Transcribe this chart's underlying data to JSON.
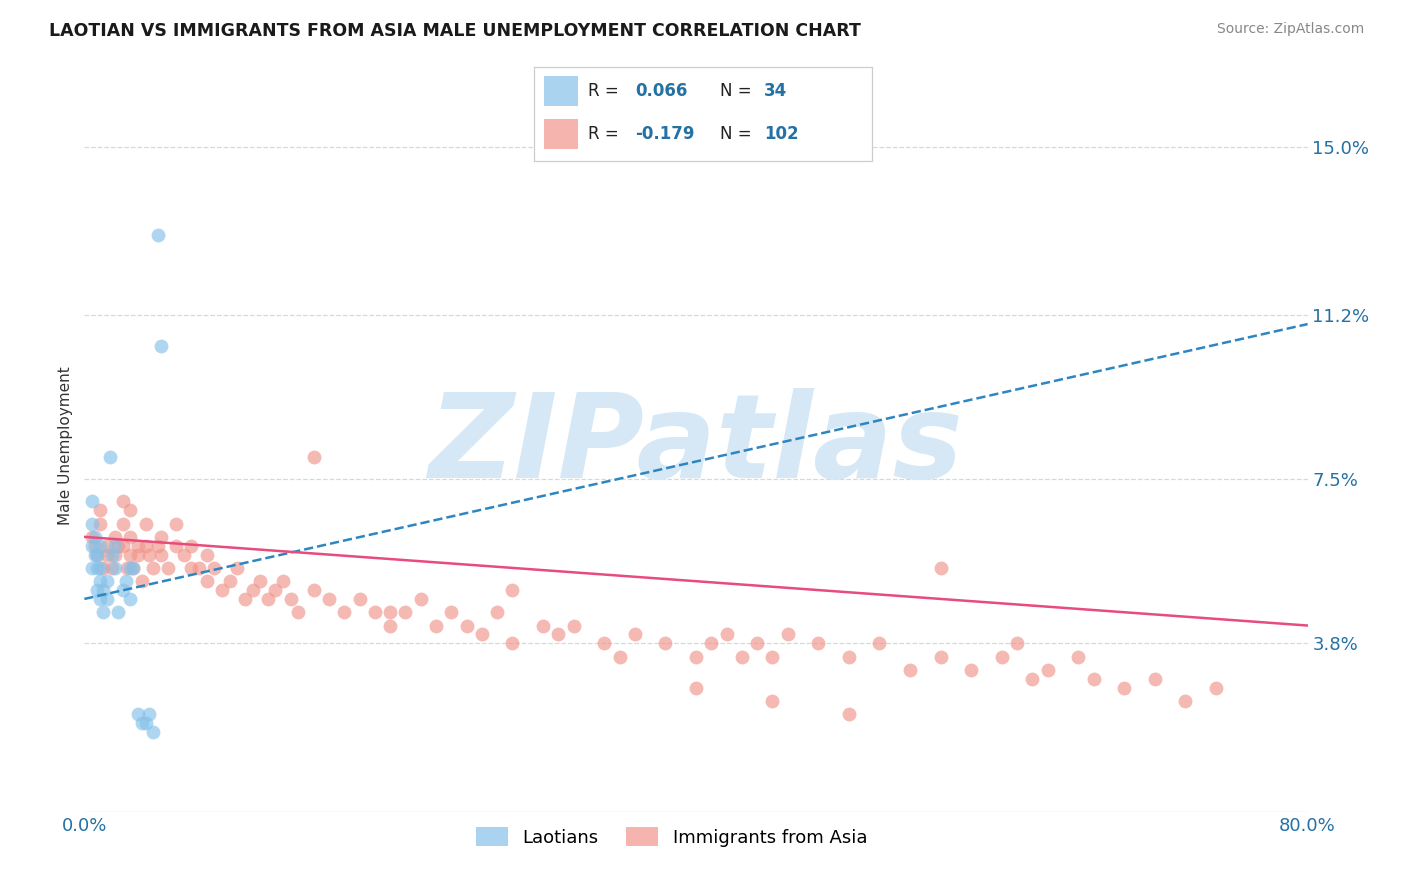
{
  "title": "LAOTIAN VS IMMIGRANTS FROM ASIA MALE UNEMPLOYMENT CORRELATION CHART",
  "source": "Source: ZipAtlas.com",
  "ylabel": "Male Unemployment",
  "xmin": 0.0,
  "xmax": 0.8,
  "ymin": 0.0,
  "ymax": 0.165,
  "ytick_vals": [
    0.038,
    0.075,
    0.112,
    0.15
  ],
  "ytick_labels": [
    "3.8%",
    "7.5%",
    "11.2%",
    "15.0%"
  ],
  "laotian_color": "#85c1e9",
  "asia_color": "#f1948a",
  "laotian_line_color": "#2e86c1",
  "asia_line_color": "#e74c7c",
  "laotian_R": 0.066,
  "laotian_N": 34,
  "asia_R": -0.179,
  "asia_N": 102,
  "watermark": "ZIPatlas",
  "watermark_color": "#d6e8f5",
  "background_color": "#ffffff",
  "title_fontsize": 12.5,
  "laotian_points_x": [
    0.005,
    0.005,
    0.005,
    0.005,
    0.007,
    0.007,
    0.008,
    0.008,
    0.008,
    0.01,
    0.01,
    0.01,
    0.01,
    0.012,
    0.012,
    0.015,
    0.015,
    0.017,
    0.018,
    0.02,
    0.02,
    0.022,
    0.025,
    0.027,
    0.03,
    0.03,
    0.032,
    0.035,
    0.038,
    0.04,
    0.042,
    0.045,
    0.048,
    0.05
  ],
  "laotian_points_y": [
    0.055,
    0.06,
    0.065,
    0.07,
    0.058,
    0.062,
    0.05,
    0.055,
    0.058,
    0.048,
    0.052,
    0.055,
    0.06,
    0.045,
    0.05,
    0.048,
    0.052,
    0.08,
    0.058,
    0.055,
    0.06,
    0.045,
    0.05,
    0.052,
    0.048,
    0.055,
    0.055,
    0.022,
    0.02,
    0.02,
    0.022,
    0.018,
    0.13,
    0.105
  ],
  "asia_points_x": [
    0.005,
    0.007,
    0.008,
    0.01,
    0.01,
    0.012,
    0.015,
    0.015,
    0.018,
    0.02,
    0.02,
    0.022,
    0.025,
    0.025,
    0.025,
    0.028,
    0.03,
    0.03,
    0.03,
    0.032,
    0.035,
    0.035,
    0.038,
    0.04,
    0.04,
    0.042,
    0.045,
    0.048,
    0.05,
    0.05,
    0.055,
    0.06,
    0.06,
    0.065,
    0.07,
    0.07,
    0.075,
    0.08,
    0.08,
    0.085,
    0.09,
    0.095,
    0.1,
    0.105,
    0.11,
    0.115,
    0.12,
    0.125,
    0.13,
    0.135,
    0.14,
    0.15,
    0.16,
    0.17,
    0.18,
    0.19,
    0.2,
    0.21,
    0.22,
    0.23,
    0.24,
    0.25,
    0.26,
    0.27,
    0.28,
    0.3,
    0.31,
    0.32,
    0.34,
    0.36,
    0.38,
    0.4,
    0.41,
    0.42,
    0.43,
    0.44,
    0.45,
    0.46,
    0.48,
    0.5,
    0.52,
    0.54,
    0.56,
    0.58,
    0.6,
    0.61,
    0.63,
    0.65,
    0.66,
    0.68,
    0.7,
    0.72,
    0.74,
    0.5,
    0.4,
    0.2,
    0.35,
    0.28,
    0.45,
    0.56,
    0.15,
    0.62
  ],
  "asia_points_y": [
    0.062,
    0.06,
    0.058,
    0.065,
    0.068,
    0.055,
    0.06,
    0.058,
    0.055,
    0.062,
    0.058,
    0.06,
    0.07,
    0.065,
    0.06,
    0.055,
    0.068,
    0.062,
    0.058,
    0.055,
    0.06,
    0.058,
    0.052,
    0.06,
    0.065,
    0.058,
    0.055,
    0.06,
    0.062,
    0.058,
    0.055,
    0.06,
    0.065,
    0.058,
    0.055,
    0.06,
    0.055,
    0.058,
    0.052,
    0.055,
    0.05,
    0.052,
    0.055,
    0.048,
    0.05,
    0.052,
    0.048,
    0.05,
    0.052,
    0.048,
    0.045,
    0.05,
    0.048,
    0.045,
    0.048,
    0.045,
    0.042,
    0.045,
    0.048,
    0.042,
    0.045,
    0.042,
    0.04,
    0.045,
    0.038,
    0.042,
    0.04,
    0.042,
    0.038,
    0.04,
    0.038,
    0.035,
    0.038,
    0.04,
    0.035,
    0.038,
    0.035,
    0.04,
    0.038,
    0.035,
    0.038,
    0.032,
    0.035,
    0.032,
    0.035,
    0.038,
    0.032,
    0.035,
    0.03,
    0.028,
    0.03,
    0.025,
    0.028,
    0.022,
    0.028,
    0.045,
    0.035,
    0.05,
    0.025,
    0.055,
    0.08,
    0.03
  ]
}
